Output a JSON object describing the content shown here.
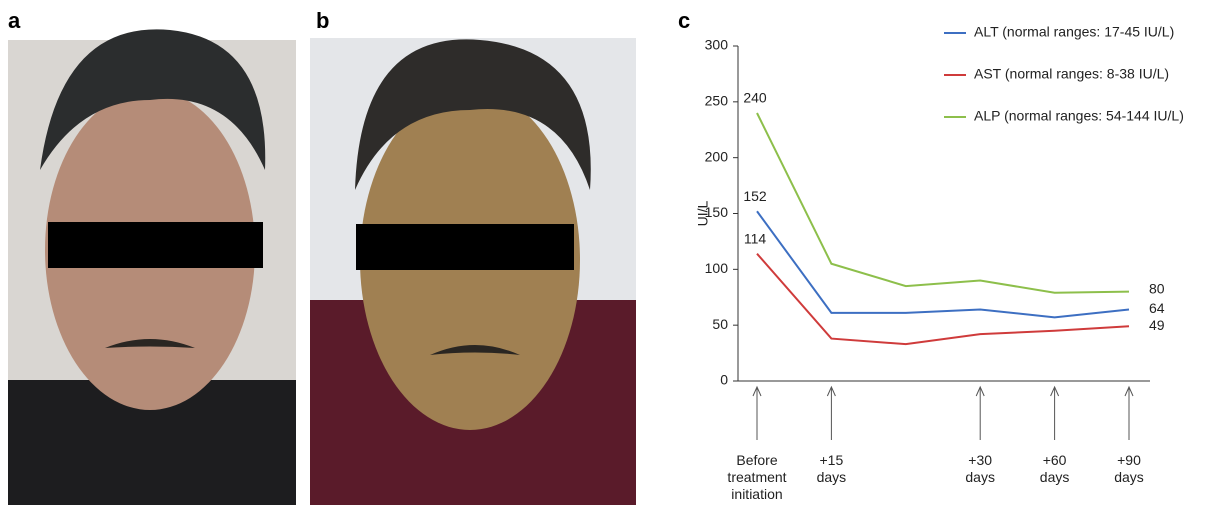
{
  "panel_labels": [
    "a",
    "b",
    "c"
  ],
  "chart_data": {
    "type": "line",
    "y_label": "UI/L",
    "categories": [
      "Before treatment initiation",
      "+15 days",
      null,
      "+30 days",
      "+60 days",
      "+90 days"
    ],
    "series": [
      {
        "name": "ALT (normal ranges: 17-45 IU/L)",
        "color": "#3d6fc2",
        "values": [
          152,
          61,
          61,
          64,
          57,
          64
        ]
      },
      {
        "name": "AST (normal ranges: 8-38 IU/L)",
        "color": "#cf3b3b",
        "values": [
          114,
          38,
          33,
          42,
          45,
          49
        ]
      },
      {
        "name": "ALP (normal ranges: 54-144 IU/L)",
        "color": "#8dbf4b",
        "values": [
          240,
          105,
          85,
          90,
          79,
          80
        ]
      }
    ],
    "ylim": [
      0,
      300
    ],
    "yticks": [
      0,
      50,
      100,
      150,
      200,
      250,
      300
    ],
    "grid": false
  }
}
